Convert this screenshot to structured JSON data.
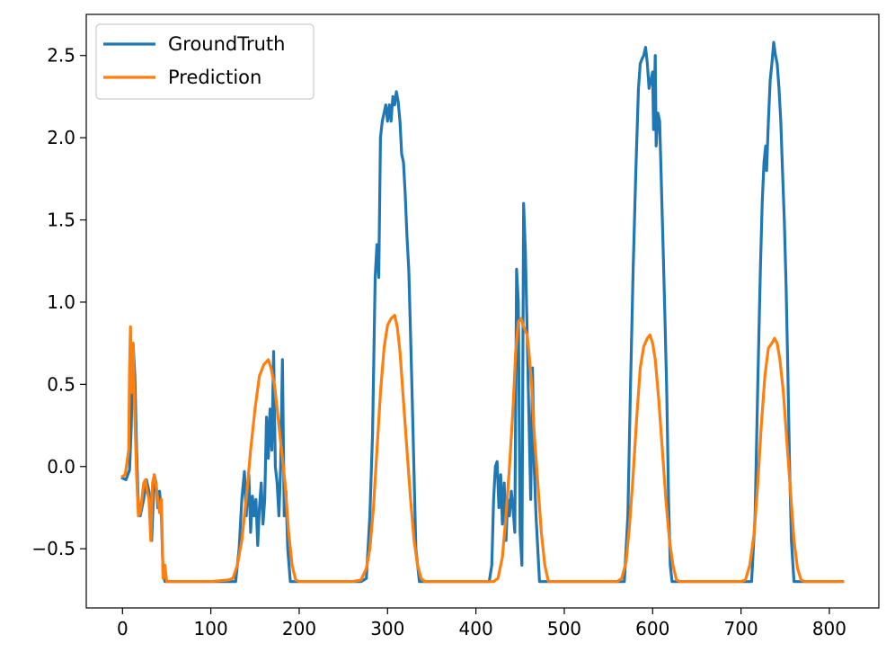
{
  "chart_data": {
    "type": "line",
    "title": "",
    "xlabel": "",
    "ylabel": "",
    "xlim": [
      -41,
      856
    ],
    "ylim": [
      -0.86,
      2.75
    ],
    "x_ticks": [
      0,
      100,
      200,
      300,
      400,
      500,
      600,
      700,
      800
    ],
    "x_tick_labels": [
      "0",
      "100",
      "200",
      "300",
      "400",
      "500",
      "600",
      "700",
      "800"
    ],
    "y_ticks": [
      -0.5,
      0.0,
      0.5,
      1.0,
      1.5,
      2.0,
      2.5
    ],
    "y_tick_labels": [
      "−0.5",
      "0.0",
      "0.5",
      "1.0",
      "1.5",
      "2.0",
      "2.5"
    ],
    "grid": false,
    "legend": {
      "position": "top-left"
    },
    "series": [
      {
        "name": "GroundTruth",
        "color": "#1f77b4",
        "points": [
          [
            0,
            -0.07
          ],
          [
            4,
            -0.08
          ],
          [
            8,
            -0.02
          ],
          [
            10,
            0.25
          ],
          [
            12,
            0.75
          ],
          [
            14,
            0.55
          ],
          [
            16,
            0.1
          ],
          [
            18,
            -0.25
          ],
          [
            20,
            -0.3
          ],
          [
            24,
            -0.2
          ],
          [
            27,
            -0.08
          ],
          [
            30,
            -0.15
          ],
          [
            33,
            -0.45
          ],
          [
            36,
            -0.05
          ],
          [
            38,
            -0.1
          ],
          [
            40,
            -0.25
          ],
          [
            42,
            -0.15
          ],
          [
            44,
            -0.3
          ],
          [
            46,
            -0.65
          ],
          [
            48,
            -0.7
          ],
          [
            60,
            -0.7
          ],
          [
            100,
            -0.7
          ],
          [
            120,
            -0.7
          ],
          [
            128,
            -0.7
          ],
          [
            132,
            -0.5
          ],
          [
            135,
            -0.2
          ],
          [
            138,
            -0.03
          ],
          [
            140,
            -0.3
          ],
          [
            143,
            -0.05
          ],
          [
            145,
            -0.4
          ],
          [
            147,
            -0.18
          ],
          [
            149,
            -0.3
          ],
          [
            151,
            -0.2
          ],
          [
            153,
            -0.48
          ],
          [
            155,
            -0.25
          ],
          [
            157,
            -0.1
          ],
          [
            159,
            -0.35
          ],
          [
            161,
            -0.2
          ],
          [
            163,
            0.3
          ],
          [
            165,
            0.05
          ],
          [
            167,
            0.35
          ],
          [
            169,
            0.1
          ],
          [
            171,
            0.7
          ],
          [
            173,
            0.0
          ],
          [
            175,
            -0.1
          ],
          [
            177,
            -0.3
          ],
          [
            179,
            0.0
          ],
          [
            181,
            0.65
          ],
          [
            183,
            -0.3
          ],
          [
            185,
            -0.15
          ],
          [
            187,
            -0.5
          ],
          [
            190,
            -0.7
          ],
          [
            200,
            -0.7
          ],
          [
            240,
            -0.7
          ],
          [
            270,
            -0.7
          ],
          [
            276,
            -0.68
          ],
          [
            280,
            -0.3
          ],
          [
            283,
            0.2
          ],
          [
            286,
            1.15
          ],
          [
            288,
            1.35
          ],
          [
            290,
            1.15
          ],
          [
            292,
            2.0
          ],
          [
            294,
            2.1
          ],
          [
            296,
            2.15
          ],
          [
            298,
            2.2
          ],
          [
            300,
            2.1
          ],
          [
            302,
            2.2
          ],
          [
            304,
            2.1
          ],
          [
            306,
            2.25
          ],
          [
            308,
            2.2
          ],
          [
            310,
            2.28
          ],
          [
            312,
            2.22
          ],
          [
            314,
            2.1
          ],
          [
            316,
            1.9
          ],
          [
            318,
            1.85
          ],
          [
            320,
            1.65
          ],
          [
            322,
            1.4
          ],
          [
            324,
            1.2
          ],
          [
            326,
            0.8
          ],
          [
            328,
            0.4
          ],
          [
            332,
            -0.5
          ],
          [
            336,
            -0.7
          ],
          [
            360,
            -0.7
          ],
          [
            400,
            -0.7
          ],
          [
            415,
            -0.7
          ],
          [
            418,
            -0.6
          ],
          [
            420,
            -0.2
          ],
          [
            422,
            0.0
          ],
          [
            424,
            0.03
          ],
          [
            426,
            -0.25
          ],
          [
            428,
            -0.05
          ],
          [
            430,
            -0.35
          ],
          [
            432,
            -0.1
          ],
          [
            434,
            -0.45
          ],
          [
            436,
            -0.2
          ],
          [
            438,
            -0.3
          ],
          [
            440,
            -0.15
          ],
          [
            442,
            -0.25
          ],
          [
            444,
            -0.4
          ],
          [
            446,
            1.2
          ],
          [
            448,
            1.0
          ],
          [
            450,
            -0.4
          ],
          [
            452,
            -0.6
          ],
          [
            454,
            1.6
          ],
          [
            456,
            1.3
          ],
          [
            458,
            0.8
          ],
          [
            460,
            0.3
          ],
          [
            462,
            -0.2
          ],
          [
            464,
            0.6
          ],
          [
            466,
            0.0
          ],
          [
            468,
            -0.3
          ],
          [
            472,
            -0.7
          ],
          [
            500,
            -0.7
          ],
          [
            560,
            -0.7
          ],
          [
            568,
            -0.7
          ],
          [
            572,
            -0.3
          ],
          [
            575,
            0.5
          ],
          [
            578,
            1.2
          ],
          [
            581,
            1.8
          ],
          [
            584,
            2.3
          ],
          [
            586,
            2.45
          ],
          [
            588,
            2.48
          ],
          [
            590,
            2.5
          ],
          [
            592,
            2.55
          ],
          [
            594,
            2.45
          ],
          [
            596,
            2.3
          ],
          [
            598,
            2.35
          ],
          [
            600,
            2.4
          ],
          [
            601,
            2.05
          ],
          [
            603,
            2.5
          ],
          [
            604,
            1.95
          ],
          [
            606,
            2.15
          ],
          [
            608,
            2.1
          ],
          [
            610,
            1.7
          ],
          [
            612,
            1.3
          ],
          [
            614,
            0.9
          ],
          [
            616,
            0.45
          ],
          [
            618,
            -0.2
          ],
          [
            620,
            -0.6
          ],
          [
            622,
            -0.7
          ],
          [
            660,
            -0.7
          ],
          [
            700,
            -0.7
          ],
          [
            712,
            -0.7
          ],
          [
            716,
            -0.3
          ],
          [
            719,
            0.5
          ],
          [
            722,
            1.2
          ],
          [
            724,
            1.6
          ],
          [
            726,
            1.85
          ],
          [
            728,
            1.95
          ],
          [
            729,
            1.8
          ],
          [
            731,
            2.1
          ],
          [
            733,
            2.35
          ],
          [
            735,
            2.45
          ],
          [
            737,
            2.58
          ],
          [
            739,
            2.5
          ],
          [
            741,
            2.45
          ],
          [
            743,
            2.3
          ],
          [
            745,
            2.1
          ],
          [
            747,
            1.8
          ],
          [
            749,
            1.5
          ],
          [
            751,
            1.1
          ],
          [
            753,
            0.6
          ],
          [
            755,
            0.0
          ],
          [
            757,
            -0.45
          ],
          [
            760,
            -0.7
          ],
          [
            780,
            -0.7
          ],
          [
            800,
            -0.7
          ],
          [
            815,
            -0.7
          ]
        ]
      },
      {
        "name": "Prediction",
        "color": "#ff7f0e",
        "points": [
          [
            0,
            -0.06
          ],
          [
            3,
            -0.05
          ],
          [
            5,
            0.02
          ],
          [
            7,
            0.1
          ],
          [
            8,
            0.6
          ],
          [
            9,
            0.85
          ],
          [
            10,
            0.5
          ],
          [
            11,
            0.45
          ],
          [
            12,
            0.75
          ],
          [
            14,
            0.3
          ],
          [
            16,
            -0.05
          ],
          [
            18,
            -0.3
          ],
          [
            20,
            -0.28
          ],
          [
            22,
            -0.2
          ],
          [
            24,
            -0.1
          ],
          [
            26,
            -0.08
          ],
          [
            28,
            -0.15
          ],
          [
            30,
            -0.2
          ],
          [
            32,
            -0.45
          ],
          [
            34,
            -0.1
          ],
          [
            36,
            -0.05
          ],
          [
            38,
            -0.12
          ],
          [
            40,
            -0.2
          ],
          [
            42,
            -0.28
          ],
          [
            44,
            -0.2
          ],
          [
            46,
            -0.68
          ],
          [
            48,
            -0.6
          ],
          [
            50,
            -0.7
          ],
          [
            60,
            -0.7
          ],
          [
            100,
            -0.7
          ],
          [
            120,
            -0.69
          ],
          [
            125,
            -0.68
          ],
          [
            130,
            -0.6
          ],
          [
            135,
            -0.45
          ],
          [
            140,
            -0.2
          ],
          [
            145,
            0.1
          ],
          [
            150,
            0.35
          ],
          [
            155,
            0.55
          ],
          [
            160,
            0.62
          ],
          [
            165,
            0.65
          ],
          [
            168,
            0.6
          ],
          [
            172,
            0.5
          ],
          [
            176,
            0.3
          ],
          [
            180,
            0.1
          ],
          [
            184,
            -0.1
          ],
          [
            188,
            -0.4
          ],
          [
            192,
            -0.6
          ],
          [
            196,
            -0.69
          ],
          [
            200,
            -0.7
          ],
          [
            260,
            -0.7
          ],
          [
            270,
            -0.69
          ],
          [
            276,
            -0.62
          ],
          [
            280,
            -0.5
          ],
          [
            284,
            -0.25
          ],
          [
            288,
            0.1
          ],
          [
            292,
            0.45
          ],
          [
            296,
            0.72
          ],
          [
            300,
            0.86
          ],
          [
            304,
            0.9
          ],
          [
            308,
            0.92
          ],
          [
            311,
            0.85
          ],
          [
            314,
            0.7
          ],
          [
            318,
            0.4
          ],
          [
            322,
            0.1
          ],
          [
            326,
            -0.2
          ],
          [
            330,
            -0.45
          ],
          [
            334,
            -0.6
          ],
          [
            338,
            -0.68
          ],
          [
            342,
            -0.7
          ],
          [
            400,
            -0.7
          ],
          [
            420,
            -0.7
          ],
          [
            425,
            -0.68
          ],
          [
            430,
            -0.55
          ],
          [
            434,
            -0.3
          ],
          [
            438,
            0.0
          ],
          [
            442,
            0.35
          ],
          [
            445,
            0.7
          ],
          [
            448,
            0.88
          ],
          [
            451,
            0.9
          ],
          [
            454,
            0.85
          ],
          [
            458,
            0.8
          ],
          [
            460,
            0.7
          ],
          [
            463,
            0.5
          ],
          [
            466,
            0.2
          ],
          [
            470,
            -0.1
          ],
          [
            474,
            -0.4
          ],
          [
            478,
            -0.6
          ],
          [
            482,
            -0.7
          ],
          [
            500,
            -0.7
          ],
          [
            550,
            -0.7
          ],
          [
            560,
            -0.7
          ],
          [
            565,
            -0.68
          ],
          [
            570,
            -0.58
          ],
          [
            574,
            -0.35
          ],
          [
            578,
            -0.05
          ],
          [
            582,
            0.3
          ],
          [
            586,
            0.6
          ],
          [
            590,
            0.73
          ],
          [
            594,
            0.78
          ],
          [
            597,
            0.8
          ],
          [
            600,
            0.75
          ],
          [
            603,
            0.65
          ],
          [
            607,
            0.4
          ],
          [
            611,
            0.1
          ],
          [
            615,
            -0.2
          ],
          [
            619,
            -0.45
          ],
          [
            623,
            -0.6
          ],
          [
            627,
            -0.69
          ],
          [
            631,
            -0.7
          ],
          [
            700,
            -0.7
          ],
          [
            705,
            -0.69
          ],
          [
            710,
            -0.6
          ],
          [
            715,
            -0.4
          ],
          [
            719,
            -0.1
          ],
          [
            723,
            0.25
          ],
          [
            727,
            0.55
          ],
          [
            731,
            0.72
          ],
          [
            735,
            0.75
          ],
          [
            738,
            0.78
          ],
          [
            741,
            0.75
          ],
          [
            744,
            0.65
          ],
          [
            748,
            0.45
          ],
          [
            752,
            0.15
          ],
          [
            756,
            -0.15
          ],
          [
            760,
            -0.45
          ],
          [
            764,
            -0.62
          ],
          [
            768,
            -0.69
          ],
          [
            772,
            -0.7
          ],
          [
            800,
            -0.7
          ],
          [
            815,
            -0.7
          ]
        ]
      }
    ]
  }
}
